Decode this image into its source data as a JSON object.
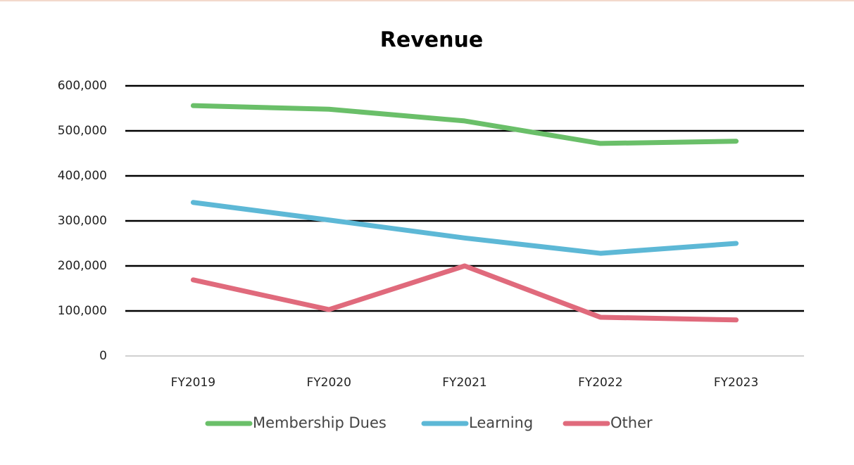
{
  "chart_data": {
    "type": "line",
    "title": "Revenue",
    "categories": [
      "FY2019",
      "FY2020",
      "FY2021",
      "FY2022",
      "FY2023"
    ],
    "series": [
      {
        "name": "Membership Dues",
        "color": "#6abf69",
        "values": [
          556000,
          548000,
          522000,
          472000,
          477000
        ]
      },
      {
        "name": "Learning",
        "color": "#5db8d6",
        "values": [
          341000,
          302000,
          262000,
          228000,
          250000
        ]
      },
      {
        "name": "Other",
        "color": "#e06a7c",
        "values": [
          169000,
          103000,
          200000,
          86000,
          80000
        ]
      }
    ],
    "ylim": [
      0,
      600000
    ],
    "yticks": [
      0,
      {
        "value": 100000,
        "label": "100,000"
      },
      {
        "value": 200000,
        "label": "200,000"
      },
      {
        "value": 300000,
        "label": "300,000"
      },
      {
        "value": 400000,
        "label": "400,000"
      },
      {
        "value": 500000,
        "label": "500,000"
      },
      {
        "value": 600000,
        "label": "600,000"
      }
    ],
    "grid": true,
    "legend": "bottom"
  }
}
